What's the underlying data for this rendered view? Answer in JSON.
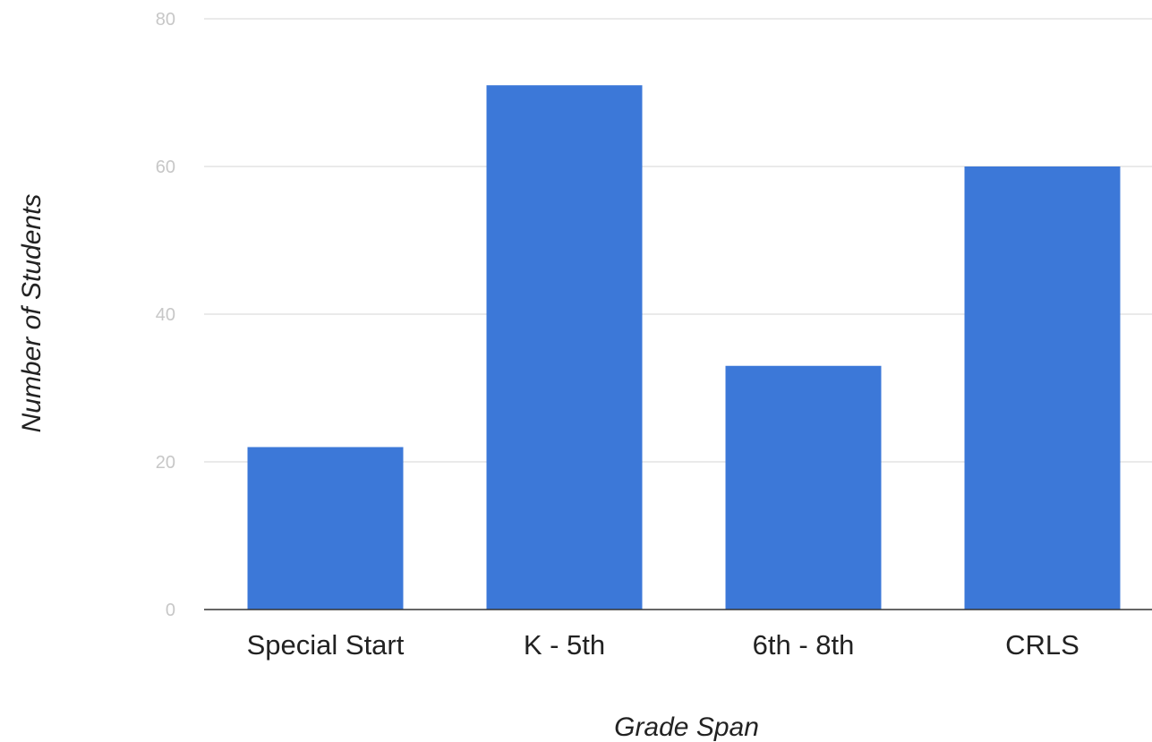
{
  "chart_data": {
    "type": "bar",
    "title": "",
    "xlabel": "Grade Span",
    "ylabel": "Number of Students",
    "categories": [
      "Special Start",
      "K - 5th",
      "6th - 8th",
      "CRLS"
    ],
    "values": [
      22,
      71,
      33,
      60
    ],
    "ylim": [
      0,
      80
    ],
    "yticks": [
      0,
      20,
      40,
      60,
      80
    ],
    "grid": true,
    "legend": "none",
    "colors": {
      "bar": "#3c78d8",
      "gridline": "#e3e3e3",
      "baseline": "#333333",
      "tick_text": "#c7c7c7",
      "label_text": "#222222"
    }
  }
}
